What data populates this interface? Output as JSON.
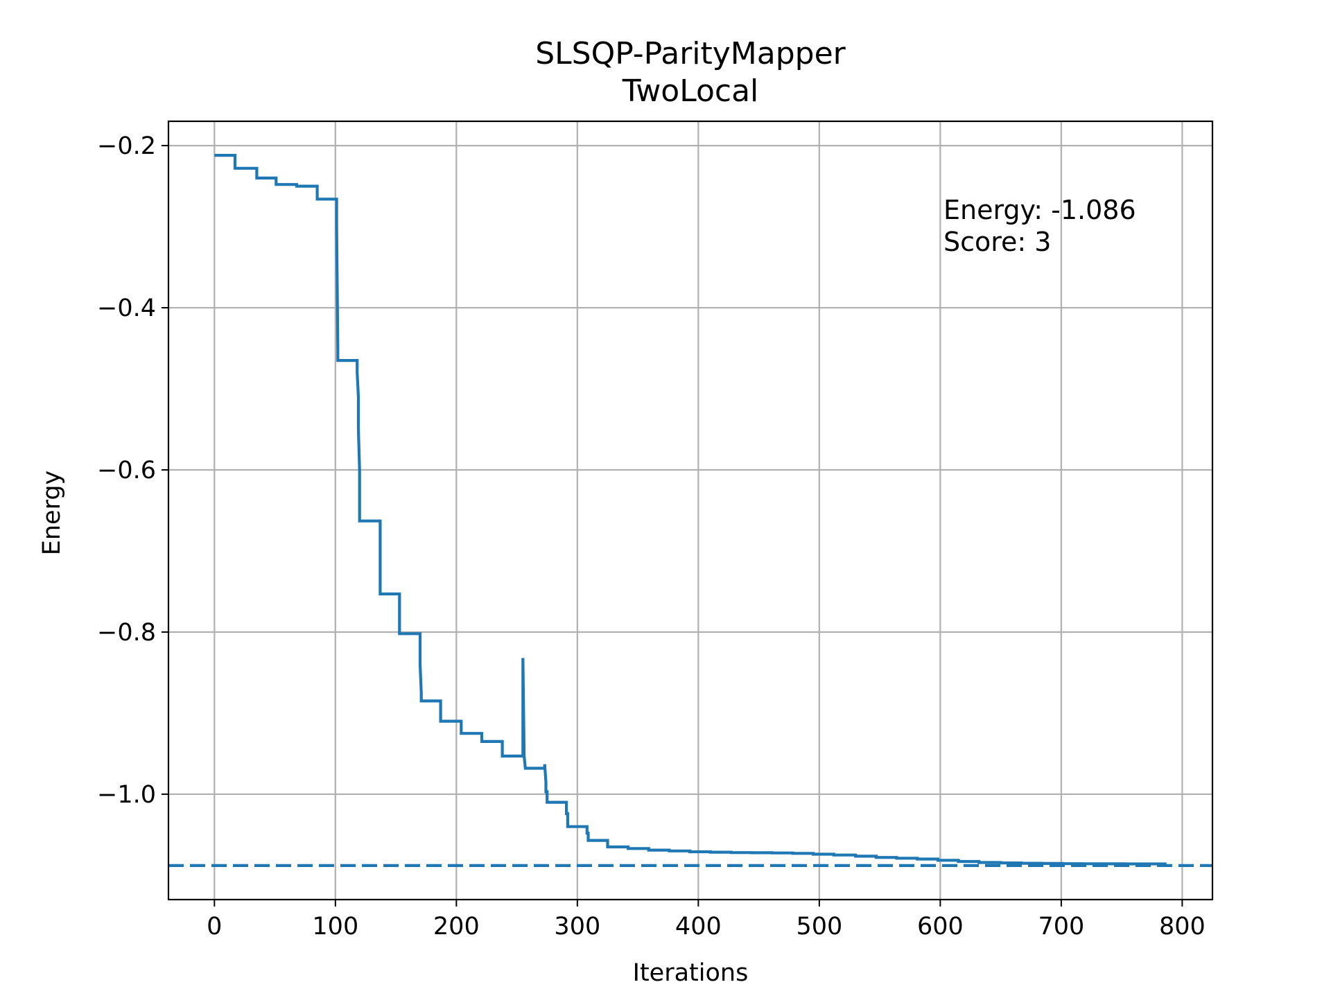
{
  "chart_data": {
    "type": "line",
    "title": "SLSQP-ParityMapper",
    "subtitle": "TwoLocal",
    "xlabel": "Iterations",
    "ylabel": "Energy",
    "xlim": [
      -38,
      825
    ],
    "ylim": [
      -1.13,
      -0.17
    ],
    "xticks": [
      0,
      100,
      200,
      300,
      400,
      500,
      600,
      700,
      800
    ],
    "xtick_labels": [
      "0",
      "100",
      "200",
      "300",
      "400",
      "500",
      "600",
      "700",
      "800"
    ],
    "yticks": [
      -0.2,
      -0.4,
      -0.6,
      -0.8,
      -1.0
    ],
    "ytick_labels": [
      "−0.2",
      "−0.4",
      "−0.6",
      "−0.8",
      "−1.0"
    ],
    "grid": true,
    "line_color": "#1f77b4",
    "series": [
      {
        "style": "solid",
        "x": [
          0,
          17,
          17,
          35,
          35,
          51,
          51,
          68,
          68,
          85,
          85,
          101,
          101,
          102,
          102,
          118,
          118,
          119,
          119,
          120,
          120,
          137,
          137,
          153,
          153,
          170,
          170,
          171,
          171,
          187,
          187,
          204,
          204,
          221,
          221,
          238,
          238,
          255,
          255,
          256,
          256,
          257,
          257,
          273,
          273,
          274,
          274,
          275,
          275,
          291,
          291,
          292,
          292,
          308,
          308,
          309,
          309,
          325,
          325,
          342,
          342,
          359,
          359,
          376,
          376,
          393,
          393,
          410,
          410,
          427,
          427,
          444,
          444,
          461,
          461,
          478,
          478,
          495,
          495,
          512,
          512,
          530,
          530,
          547,
          547,
          564,
          564,
          581,
          581,
          598,
          598,
          615,
          615,
          632,
          632,
          650,
          650,
          667,
          667,
          684,
          684,
          701,
          701,
          718,
          718,
          735,
          735,
          752,
          752,
          770,
          770,
          787
        ],
        "y": [
          -0.212,
          -0.212,
          -0.228,
          -0.228,
          -0.24,
          -0.24,
          -0.248,
          -0.248,
          -0.25,
          -0.25,
          -0.266,
          -0.266,
          -0.3,
          -0.45,
          -0.465,
          -0.465,
          -0.48,
          -0.51,
          -0.55,
          -0.6,
          -0.663,
          -0.663,
          -0.753,
          -0.753,
          -0.802,
          -0.802,
          -0.84,
          -0.875,
          -0.885,
          -0.885,
          -0.91,
          -0.91,
          -0.925,
          -0.925,
          -0.935,
          -0.935,
          -0.953,
          -0.953,
          -0.832,
          -0.953,
          -0.953,
          -0.968,
          -0.968,
          -0.968,
          -0.963,
          -0.985,
          -0.997,
          -0.997,
          -1.01,
          -1.01,
          -1.024,
          -1.024,
          -1.04,
          -1.04,
          -1.048,
          -1.048,
          -1.057,
          -1.057,
          -1.065,
          -1.065,
          -1.067,
          -1.067,
          -1.069,
          -1.069,
          -1.07,
          -1.07,
          -1.071,
          -1.071,
          -1.0715,
          -1.0715,
          -1.072,
          -1.072,
          -1.0722,
          -1.0722,
          -1.0725,
          -1.0725,
          -1.073,
          -1.073,
          -1.074,
          -1.074,
          -1.075,
          -1.075,
          -1.0765,
          -1.0765,
          -1.078,
          -1.078,
          -1.079,
          -1.079,
          -1.08,
          -1.08,
          -1.0815,
          -1.0815,
          -1.083,
          -1.083,
          -1.0843,
          -1.0843,
          -1.0848,
          -1.0848,
          -1.0852,
          -1.0852,
          -1.0855,
          -1.0855,
          -1.0857,
          -1.0857,
          -1.0858,
          -1.0858,
          -1.0859,
          -1.0859,
          -1.086,
          -1.086,
          -1.086,
          -1.086
        ]
      },
      {
        "style": "dashed",
        "x": [
          -38,
          825
        ],
        "y": [
          -1.088,
          -1.088
        ]
      }
    ],
    "annotations": [
      "Energy: -1.086",
      "Score: 3"
    ]
  }
}
